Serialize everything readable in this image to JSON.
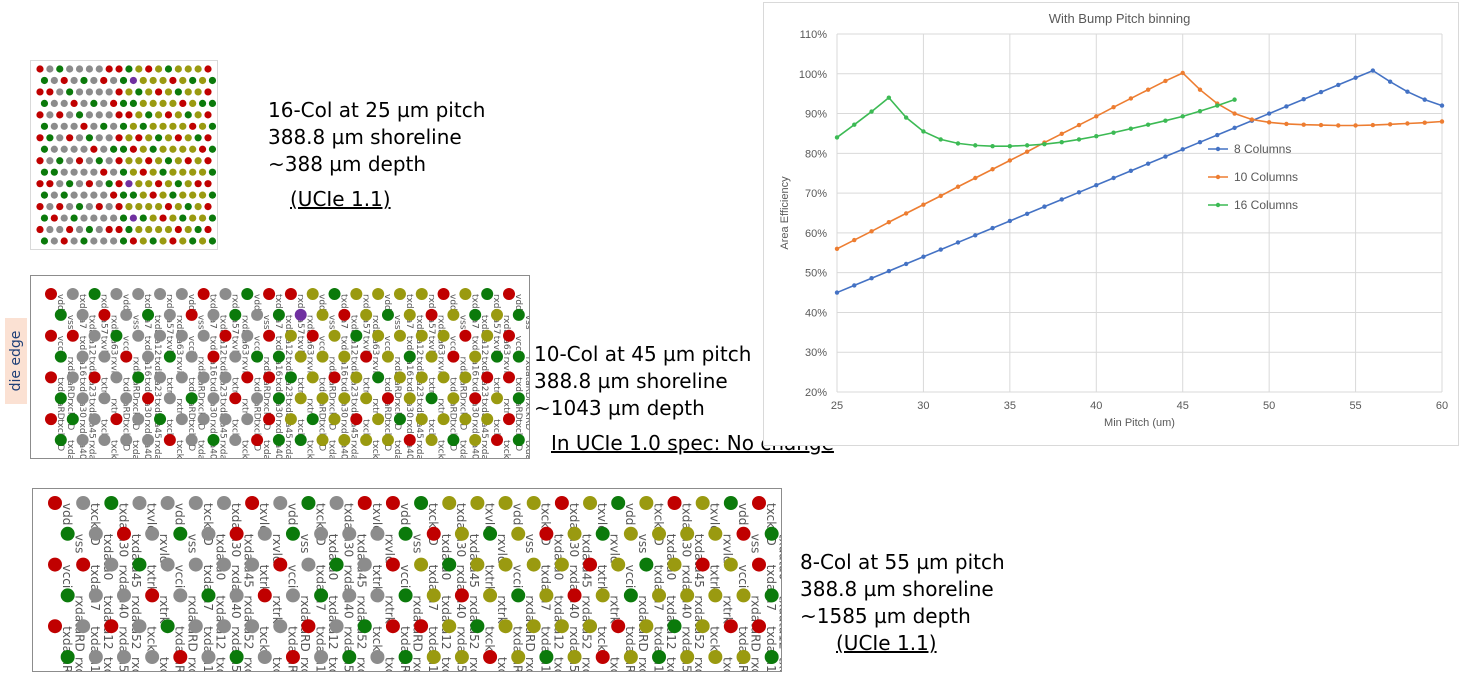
{
  "panels": {
    "p16": {
      "lines": [
        "16-Col at 25 µm pitch",
        "388.8 µm shoreline",
        "~388 µm depth"
      ],
      "note": "(UCIe 1.1)"
    },
    "p10": {
      "lines": [
        "10-Col at 45 µm pitch",
        "388.8 µm shoreline",
        "~1043 µm depth"
      ],
      "note": "In UCIe 1.0 spec: No change"
    },
    "p8": {
      "lines": [
        "8-Col at 55 µm pitch",
        "388.8 µm shoreline",
        "~1585 µm depth"
      ],
      "note": "(UCIe 1.1)"
    }
  },
  "die_edge_label": "die edge",
  "pin_labels": [
    "vdd",
    "vss",
    "vccio",
    "rxdataRD",
    "txdataRD",
    "rxckRD",
    "txckRD",
    "txdata0",
    "txdata7",
    "txdata12",
    "txdata16",
    "txdata23",
    "txdata30",
    "txdata45",
    "rxdata40",
    "rxdata52",
    "rxdata57",
    "rxdata63",
    "txvld",
    "rxvld",
    "txtrk",
    "rxtrk",
    "txckn",
    "txckp"
  ],
  "colors": {
    "power": "#c00000",
    "ground": "#0b7a0b",
    "tx_signal": "#8c8c8c",
    "rx_signal": "#9a9a10",
    "clock": "#7030a0",
    "chart_8col": "#4472c4",
    "chart_10col": "#ed7d31",
    "chart_16col": "#3cba54"
  },
  "chart_data": {
    "type": "line",
    "title": "With Bump Pitch binning",
    "xlabel": "Min Pitch (um)",
    "ylabel": "Area Efficiency",
    "xlim": [
      25,
      60
    ],
    "ylim": [
      0.2,
      1.1
    ],
    "x_ticks": [
      "25",
      "30",
      "35",
      "40",
      "45",
      "50",
      "55",
      "60"
    ],
    "y_ticks": [
      "20%",
      "30%",
      "40%",
      "50%",
      "60%",
      "70%",
      "80%",
      "90%",
      "100%",
      "110%"
    ],
    "grid": true,
    "legend_position": "right",
    "series": [
      {
        "name": "8 Columns",
        "x": [
          25,
          26,
          27,
          28,
          29,
          30,
          31,
          32,
          33,
          34,
          35,
          36,
          37,
          38,
          39,
          40,
          41,
          42,
          43,
          44,
          45,
          46,
          47,
          48,
          49,
          50,
          51,
          52,
          53,
          54,
          55,
          56,
          57,
          58,
          59,
          60
        ],
        "values": [
          0.45,
          0.468,
          0.486,
          0.504,
          0.522,
          0.54,
          0.558,
          0.576,
          0.594,
          0.612,
          0.63,
          0.648,
          0.666,
          0.684,
          0.702,
          0.72,
          0.738,
          0.756,
          0.774,
          0.792,
          0.81,
          0.828,
          0.846,
          0.864,
          0.882,
          0.9,
          0.918,
          0.936,
          0.954,
          0.972,
          0.99,
          1.008,
          0.98,
          0.955,
          0.935,
          0.92
        ]
      },
      {
        "name": "10 Columns",
        "x": [
          25,
          26,
          27,
          28,
          29,
          30,
          31,
          32,
          33,
          34,
          35,
          36,
          37,
          38,
          39,
          40,
          41,
          42,
          43,
          44,
          45,
          46,
          47,
          48,
          49,
          50,
          51,
          52,
          53,
          54,
          55,
          56,
          57,
          58,
          59,
          60
        ],
        "values": [
          0.56,
          0.582,
          0.604,
          0.627,
          0.649,
          0.671,
          0.693,
          0.716,
          0.738,
          0.76,
          0.782,
          0.804,
          0.827,
          0.849,
          0.871,
          0.893,
          0.916,
          0.938,
          0.96,
          0.982,
          1.002,
          0.96,
          0.925,
          0.9,
          0.885,
          0.878,
          0.874,
          0.872,
          0.871,
          0.87,
          0.87,
          0.871,
          0.873,
          0.875,
          0.877,
          0.88
        ]
      },
      {
        "name": "16 Columns",
        "x": [
          25,
          26,
          27,
          28,
          29,
          30,
          31,
          32,
          33,
          34,
          35,
          36,
          37,
          38,
          39,
          40,
          41,
          42,
          43,
          44,
          45,
          46,
          47,
          48
        ],
        "values": [
          0.84,
          0.872,
          0.905,
          0.94,
          0.89,
          0.855,
          0.835,
          0.825,
          0.82,
          0.818,
          0.818,
          0.82,
          0.823,
          0.828,
          0.835,
          0.843,
          0.852,
          0.862,
          0.872,
          0.882,
          0.893,
          0.906,
          0.92,
          0.935
        ]
      }
    ]
  }
}
